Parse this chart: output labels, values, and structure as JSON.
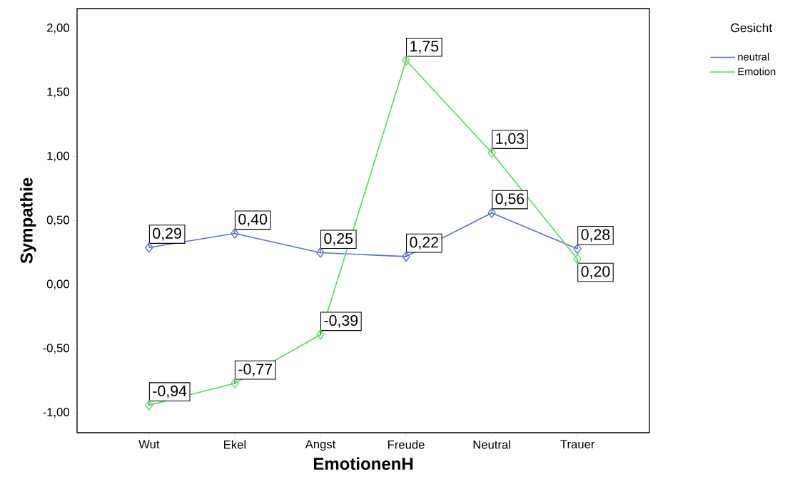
{
  "chart_data": {
    "type": "line",
    "xlabel": "EmotionenH",
    "ylabel": "Sympathie",
    "legend_title": "Gesicht",
    "categories": [
      "Wut",
      "Ekel",
      "Angst",
      "Freude",
      "Neutral",
      "Trauer"
    ],
    "series": [
      {
        "name": "neutral",
        "color": "#5b6fd4",
        "values": [
          0.29,
          0.4,
          0.25,
          0.22,
          0.56,
          0.28
        ],
        "value_labels": [
          "0,29",
          "0,40",
          "0,25",
          "0,22",
          "0,56",
          "0,28"
        ]
      },
      {
        "name": "Emotion",
        "color": "#4fe05a",
        "values": [
          -0.94,
          -0.77,
          -0.39,
          1.75,
          1.03,
          0.2
        ],
        "value_labels": [
          "-0,94",
          "-0,77",
          "-0,39",
          "1,75",
          "1,03",
          "0,20"
        ]
      }
    ],
    "ylim": [
      -1.155,
      2.155
    ],
    "yticks": [
      {
        "value": -1,
        "label": "-1,00"
      },
      {
        "value": -0.5,
        "label": "-0,50"
      },
      {
        "value": 0,
        "label": "0,00"
      },
      {
        "value": 0.5,
        "label": "0,50"
      },
      {
        "value": 1,
        "label": "1,00"
      },
      {
        "value": 1.5,
        "label": "1,50"
      },
      {
        "value": 2,
        "label": "2,00"
      }
    ],
    "grid": false,
    "legend": "top right",
    "marker": "diamond",
    "line_style": "solid"
  }
}
